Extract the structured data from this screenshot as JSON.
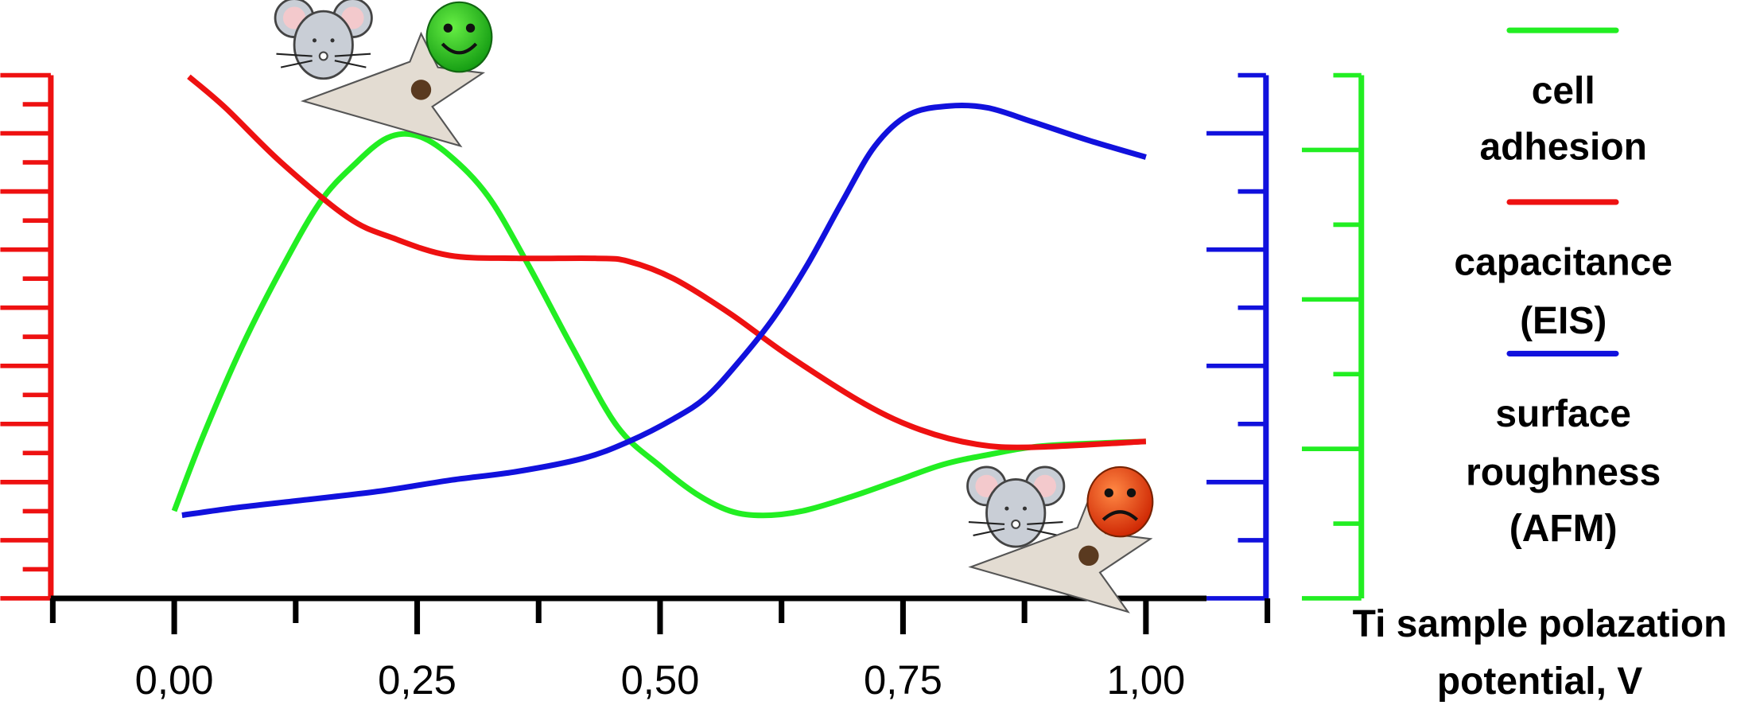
{
  "chart_data": {
    "type": "line",
    "title": "",
    "xlabel": "Ti sample polazation potential, V",
    "xlabel_lines": [
      "Ti sample polazation",
      "potential, V"
    ],
    "xlim": [
      -0.127,
      1.125
    ],
    "x_ticks": [
      0.0,
      0.25,
      0.5,
      0.75,
      1.0
    ],
    "x_tick_labels": [
      "0,00",
      "0,25",
      "0,50",
      "0,75",
      "1,00"
    ],
    "grid": false,
    "legend_placement": "right",
    "series": [
      {
        "name": "cell adhesion",
        "label_lines": [
          "cell",
          "adhesion"
        ],
        "color": "#22ee22",
        "axis": "green-right-outer",
        "ylim": [
          0,
          7
        ],
        "x": [
          0,
          0.029,
          0.069,
          0.11,
          0.15,
          0.185,
          0.219,
          0.25,
          0.283,
          0.323,
          0.364,
          0.41,
          0.456,
          0.5,
          0.537,
          0.572,
          0.606,
          0.647,
          0.699,
          0.745,
          0.791,
          0.837,
          0.895,
          1.0
        ],
        "y": [
          1.17,
          2.15,
          3.35,
          4.4,
          5.3,
          5.8,
          6.16,
          6.19,
          5.93,
          5.38,
          4.47,
          3.35,
          2.3,
          1.77,
          1.4,
          1.17,
          1.11,
          1.17,
          1.37,
          1.58,
          1.79,
          1.92,
          2.04,
          2.1
        ]
      },
      {
        "name": "capacitance (EIS)",
        "label_lines": [
          "capacitance",
          "(EIS)"
        ],
        "color": "#ee1111",
        "axis": "red-left",
        "ylim": [
          0,
          18
        ],
        "x": [
          0.015,
          0.052,
          0.11,
          0.179,
          0.225,
          0.283,
          0.352,
          0.433,
          0.467,
          0.514,
          0.572,
          0.63,
          0.71,
          0.768,
          0.826,
          0.883,
          1.0
        ],
        "y": [
          17.95,
          16.9,
          15.0,
          13.1,
          12.4,
          11.8,
          11.7,
          11.7,
          11.6,
          11.0,
          9.8,
          8.4,
          6.7,
          5.8,
          5.3,
          5.2,
          5.4
        ]
      },
      {
        "name": "surface roughness (AFM)",
        "label_lines": [
          "surface",
          "roughness",
          "(AFM)"
        ],
        "color": "#1111dd",
        "axis": "blue-right-inner",
        "ylim": [
          0,
          9
        ],
        "x": [
          0.008,
          0.064,
          0.127,
          0.214,
          0.283,
          0.352,
          0.421,
          0.468,
          0.514,
          0.548,
          0.583,
          0.617,
          0.652,
          0.687,
          0.721,
          0.756,
          0.797,
          0.837,
          0.883,
          0.941,
          1.0
        ],
        "y": [
          1.43,
          1.56,
          1.68,
          1.85,
          2.03,
          2.18,
          2.41,
          2.7,
          3.09,
          3.47,
          4.11,
          4.83,
          5.75,
          6.81,
          7.78,
          8.32,
          8.47,
          8.44,
          8.2,
          7.88,
          7.59
        ]
      }
    ],
    "axes": {
      "red": {
        "color": "#ee1111",
        "ticks": 18,
        "tick_labels": []
      },
      "blue": {
        "color": "#1111dd",
        "ticks": 9,
        "tick_labels": []
      },
      "green": {
        "color": "#22ee22",
        "ticks": 7,
        "tick_labels": []
      }
    },
    "annotations": [
      {
        "icon": "happy-mouse-cell-icon",
        "near_x": 0.25,
        "meaning": "good"
      },
      {
        "icon": "sad-mouse-cell-icon",
        "near_x": 0.9,
        "meaning": "bad"
      }
    ]
  }
}
